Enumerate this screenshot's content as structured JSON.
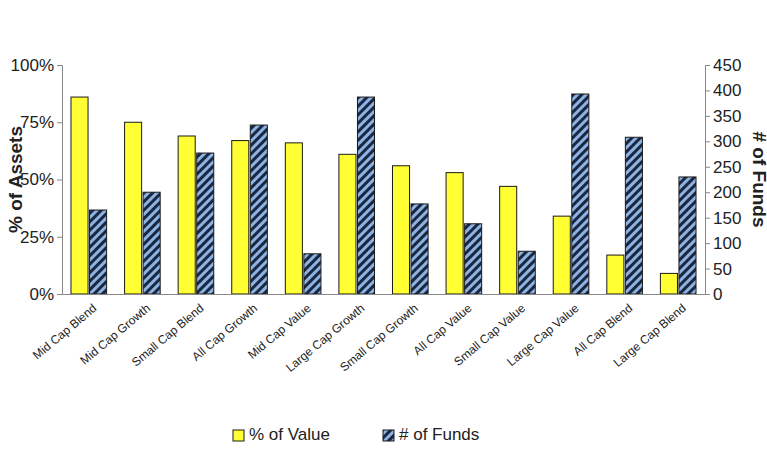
{
  "chart_data": {
    "type": "bar",
    "categories": [
      "Mid Cap Blend",
      "Mid Cap Growth",
      "Small Cap Blend",
      "All Cap Growth",
      "Mid Cap Value",
      "Large Cap Growth",
      "Small Cap Growth",
      "All Cap Value",
      "Small Cap Value",
      "Large Cap Value",
      "All Cap Blend",
      "Large Cap Blend"
    ],
    "series": [
      {
        "name": "% of Value",
        "color": "#ffff33",
        "values": [
          86,
          75,
          69,
          67,
          66,
          61,
          56,
          53,
          47,
          34,
          17,
          9
        ]
      },
      {
        "name": "# of Funds",
        "color": "#8db3e2",
        "axis": "y2",
        "values": [
          165,
          200,
          277,
          332,
          79,
          387,
          177,
          138,
          84,
          393,
          308,
          230
        ]
      }
    ],
    "y_label": "% of Assets",
    "y2_label": "# of Funds",
    "ylim": [
      0,
      100
    ],
    "yticks": [
      {
        "value": 0,
        "label": "0%"
      },
      {
        "value": 25,
        "label": "25%"
      },
      {
        "value": 50,
        "label": "50%"
      },
      {
        "value": 75,
        "label": "75%"
      },
      {
        "value": 100,
        "label": "100%"
      }
    ],
    "y2lim": [
      0,
      450
    ],
    "y2ticks": [
      0,
      50,
      100,
      150,
      200,
      250,
      300,
      350,
      400,
      450
    ],
    "legend": "bottom",
    "grid": false
  }
}
